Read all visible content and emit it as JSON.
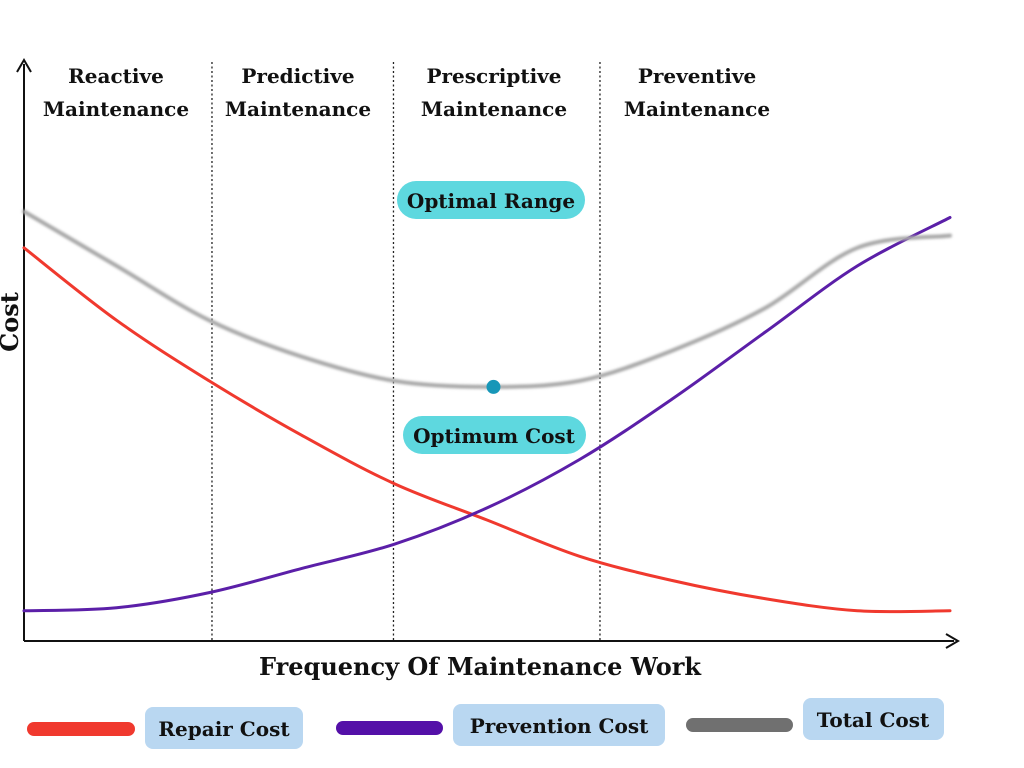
{
  "chart_data": {
    "type": "line",
    "x_range": [
      0,
      100
    ],
    "y_range": [
      0,
      100
    ],
    "ylabel": "Cost",
    "xlabel": "Frequency Of Maintenance Work",
    "grid": false,
    "legend_position": "bottom",
    "phases": [
      {
        "label": [
          "Reactive",
          "Maintenance"
        ],
        "x_start": 0,
        "x_end": 20.3
      },
      {
        "label": [
          "Predictive",
          "Maintenance"
        ],
        "x_start": 20.3,
        "x_end": 39.9
      },
      {
        "label": [
          "Prescriptive",
          "Maintenance"
        ],
        "x_start": 39.9,
        "x_end": 62.2
      },
      {
        "label": [
          "Preventive",
          "Maintenance"
        ],
        "x_start": 62.2,
        "x_end": 100
      }
    ],
    "series": [
      {
        "name": "Repair Cost",
        "color": "#f0392e",
        "x": [
          0,
          10,
          20,
          30,
          40,
          50,
          60,
          70,
          80,
          90,
          100
        ],
        "values": [
          65,
          53,
          43,
          34,
          26,
          20,
          14,
          10,
          7,
          5,
          5
        ]
      },
      {
        "name": "Prevention Cost",
        "color": "#5b1fa8",
        "x": [
          0,
          10,
          20,
          30,
          40,
          50,
          60,
          70,
          80,
          90,
          100
        ],
        "values": [
          5,
          5.5,
          8,
          12,
          16,
          22,
          30,
          40,
          51,
          62,
          70
        ]
      },
      {
        "name": "Total Cost",
        "color": "#a8a8a8",
        "x": [
          0,
          10,
          20,
          30,
          40,
          50,
          60,
          70,
          80,
          90,
          100
        ],
        "values": [
          71,
          62,
          53,
          47,
          43,
          42,
          43,
          48,
          55,
          65,
          67
        ]
      }
    ],
    "annotations": [
      {
        "text": "Optimal Range",
        "color": "#5ed8df"
      },
      {
        "text": "Optimum Cost",
        "color": "#5ed8df",
        "x": 50.7,
        "y": 42
      }
    ],
    "optimum_marker_color": "#1797b8"
  },
  "legend": {
    "items": [
      {
        "label": "Repair Cost",
        "swatch_color": "#f0392e",
        "box_color": "#b9d7f1"
      },
      {
        "label": "Prevention Cost",
        "swatch_color": "#5410a8",
        "box_color": "#b9d7f1"
      },
      {
        "label": "Total Cost",
        "swatch_color": "#707070",
        "box_color": "#b9d7f1"
      }
    ]
  }
}
